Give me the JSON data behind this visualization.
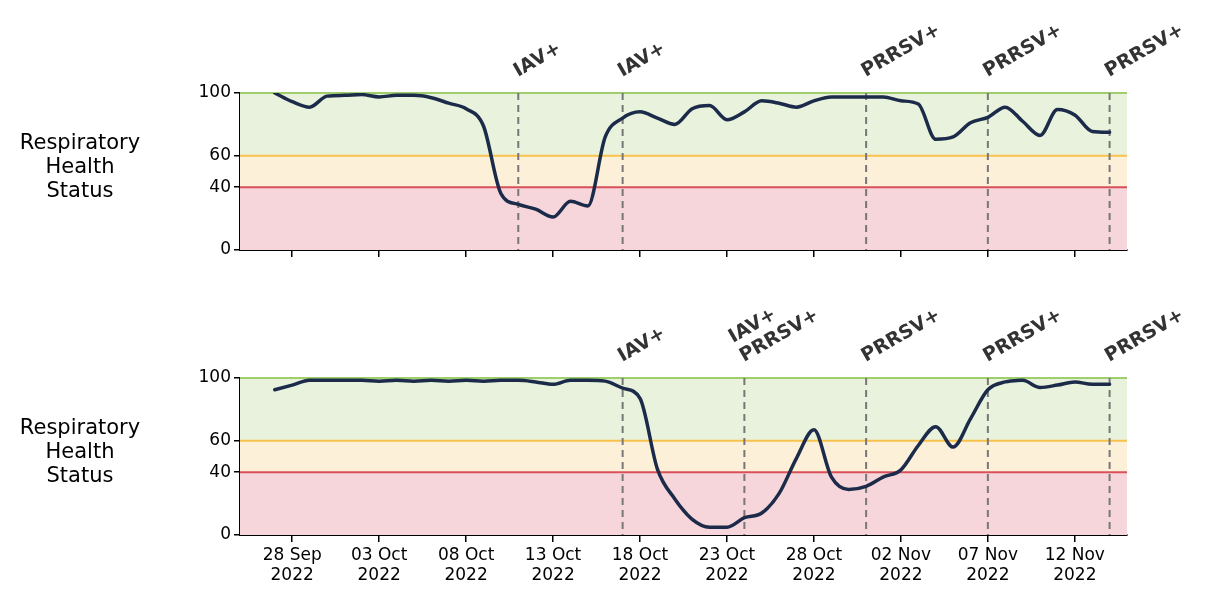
{
  "chart_data": [
    {
      "type": "line",
      "ylabel": "Respiratory\nHealth\nStatus",
      "x": [
        "2022-09-27",
        "2022-09-28",
        "2022-09-29",
        "2022-09-30",
        "2022-10-01",
        "2022-10-02",
        "2022-10-03",
        "2022-10-04",
        "2022-10-05",
        "2022-10-06",
        "2022-10-07",
        "2022-10-08",
        "2022-10-09",
        "2022-10-10",
        "2022-10-11",
        "2022-10-12",
        "2022-10-13",
        "2022-10-14",
        "2022-10-15",
        "2022-10-16",
        "2022-10-17",
        "2022-10-18",
        "2022-10-19",
        "2022-10-20",
        "2022-10-21",
        "2022-10-22",
        "2022-10-23",
        "2022-10-24",
        "2022-10-25",
        "2022-10-26",
        "2022-10-27",
        "2022-10-28",
        "2022-10-29",
        "2022-10-30",
        "2022-10-31",
        "2022-11-01",
        "2022-11-02",
        "2022-11-03",
        "2022-11-04",
        "2022-11-05",
        "2022-11-06",
        "2022-11-07",
        "2022-11-08",
        "2022-11-09",
        "2022-11-10",
        "2022-11-11",
        "2022-11-12",
        "2022-11-13",
        "2022-11-14"
      ],
      "series": [
        {
          "color": "#1c2b4a",
          "values": [
            100,
            94.5,
            91,
            98,
            98.5,
            99,
            97.5,
            98.5,
            98.5,
            97,
            93.5,
            90,
            79,
            36,
            29,
            26,
            21,
            31,
            28,
            72,
            84,
            88,
            84,
            80,
            90,
            92,
            83,
            88,
            95,
            93.5,
            91,
            95,
            97.5,
            97.5,
            97.5,
            97.5,
            95,
            93,
            70.5,
            72,
            81,
            84.5,
            91,
            82,
            73,
            89.5,
            86,
            75.5,
            75
          ]
        }
      ],
      "xlim": [
        "2022-09-25",
        "2022-11-15"
      ],
      "xticks": [
        {
          "value": "2022-09-28",
          "label": null
        },
        {
          "value": "2022-10-03",
          "label": null
        },
        {
          "value": "2022-10-08",
          "label": null
        },
        {
          "value": "2022-10-13",
          "label": null
        },
        {
          "value": "2022-10-18",
          "label": null
        },
        {
          "value": "2022-10-23",
          "label": null
        },
        {
          "value": "2022-10-28",
          "label": null
        },
        {
          "value": "2022-11-02",
          "label": null
        },
        {
          "value": "2022-11-07",
          "label": null
        },
        {
          "value": "2022-11-12",
          "label": null
        }
      ],
      "ylim": [
        0,
        100
      ],
      "yticks": [
        0,
        40,
        60,
        100
      ],
      "bands": [
        {
          "axis": "y",
          "from": 0,
          "to": 40,
          "color": "#f6d6da"
        },
        {
          "axis": "y",
          "from": 40,
          "to": 60,
          "color": "#fdf0d9"
        },
        {
          "axis": "y",
          "from": 60,
          "to": 100,
          "color": "#e9f2dc"
        }
      ],
      "ref_lines": [
        {
          "axis": "y",
          "value": 40,
          "color": "#d9505a",
          "line_style": "solid"
        },
        {
          "axis": "y",
          "value": 60,
          "color": "#f7c24c",
          "line_style": "solid"
        },
        {
          "axis": "y",
          "value": 100,
          "color": "#9fcf6c",
          "line_style": "solid"
        },
        {
          "axis": "x",
          "value": "2022-10-11",
          "label": "IAV+",
          "color": "#777777",
          "line_style": "dashed"
        },
        {
          "axis": "x",
          "value": "2022-10-17",
          "label": "IAV+",
          "color": "#777777",
          "line_style": "dashed"
        },
        {
          "axis": "x",
          "value": "2022-10-31",
          "label": "PRRSV+",
          "color": "#777777",
          "line_style": "dashed"
        },
        {
          "axis": "x",
          "value": "2022-11-07",
          "label": "PRRSV+",
          "color": "#777777",
          "line_style": "dashed"
        },
        {
          "axis": "x",
          "value": "2022-11-14",
          "label": "PRRSV+",
          "color": "#777777",
          "line_style": "dashed"
        }
      ],
      "legend": false,
      "tick_labels": "y"
    },
    {
      "type": "line",
      "ylabel": "Respiratory\nHealth\nStatus",
      "x": [
        "2022-09-27",
        "2022-09-28",
        "2022-09-29",
        "2022-09-30",
        "2022-10-01",
        "2022-10-02",
        "2022-10-03",
        "2022-10-04",
        "2022-10-05",
        "2022-10-06",
        "2022-10-07",
        "2022-10-08",
        "2022-10-09",
        "2022-10-10",
        "2022-10-11",
        "2022-10-12",
        "2022-10-13",
        "2022-10-14",
        "2022-10-15",
        "2022-10-16",
        "2022-10-17",
        "2022-10-18",
        "2022-10-19",
        "2022-10-20",
        "2022-10-21",
        "2022-10-22",
        "2022-10-23",
        "2022-10-24",
        "2022-10-25",
        "2022-10-26",
        "2022-10-27",
        "2022-10-28",
        "2022-10-29",
        "2022-10-30",
        "2022-10-31",
        "2022-11-01",
        "2022-11-02",
        "2022-11-03",
        "2022-11-04",
        "2022-11-05",
        "2022-11-06",
        "2022-11-07",
        "2022-11-08",
        "2022-11-09",
        "2022-11-10",
        "2022-11-11",
        "2022-11-12",
        "2022-11-13",
        "2022-11-14"
      ],
      "series": [
        {
          "color": "#1c2b4a",
          "values": [
            92.5,
            95.5,
            98.5,
            98.5,
            98.5,
            98.5,
            98,
            98.5,
            98,
            98.5,
            98,
            98.5,
            98,
            98.5,
            98.5,
            97.5,
            96,
            98.5,
            98.5,
            98,
            93.5,
            87,
            42,
            23,
            10,
            5,
            5,
            11,
            14,
            26.5,
            49,
            67,
            37,
            29,
            31,
            37,
            41.5,
            57,
            69,
            56,
            74,
            92.5,
            97.5,
            98.5,
            94,
            95.5,
            97.5,
            96,
            96
          ]
        }
      ],
      "xlim": [
        "2022-09-25",
        "2022-11-15"
      ],
      "xticks": [
        {
          "value": "2022-09-28",
          "label": "28 Sep\n2022"
        },
        {
          "value": "2022-10-03",
          "label": "03 Oct\n2022"
        },
        {
          "value": "2022-10-08",
          "label": "08 Oct\n2022"
        },
        {
          "value": "2022-10-13",
          "label": "13 Oct\n2022"
        },
        {
          "value": "2022-10-18",
          "label": "18 Oct\n2022"
        },
        {
          "value": "2022-10-23",
          "label": "23 Oct\n2022"
        },
        {
          "value": "2022-10-28",
          "label": "28 Oct\n2022"
        },
        {
          "value": "2022-11-02",
          "label": "02 Nov\n2022"
        },
        {
          "value": "2022-11-07",
          "label": "07 Nov\n2022"
        },
        {
          "value": "2022-11-12",
          "label": "12 Nov\n2022"
        }
      ],
      "ylim": [
        0,
        100
      ],
      "yticks": [
        0,
        40,
        60,
        100
      ],
      "bands": [
        {
          "axis": "y",
          "from": 0,
          "to": 40,
          "color": "#f6d6da"
        },
        {
          "axis": "y",
          "from": 40,
          "to": 60,
          "color": "#fdf0d9"
        },
        {
          "axis": "y",
          "from": 60,
          "to": 100,
          "color": "#e9f2dc"
        }
      ],
      "ref_lines": [
        {
          "axis": "y",
          "value": 40,
          "color": "#d9505a",
          "line_style": "solid"
        },
        {
          "axis": "y",
          "value": 60,
          "color": "#f7c24c",
          "line_style": "solid"
        },
        {
          "axis": "y",
          "value": 100,
          "color": "#9fcf6c",
          "line_style": "solid"
        },
        {
          "axis": "x",
          "value": "2022-10-17",
          "label": "IAV+",
          "color": "#777777",
          "line_style": "dashed"
        },
        {
          "axis": "x",
          "value": "2022-10-24",
          "label": "IAV+\nPRRSV+",
          "color": "#777777",
          "line_style": "dashed"
        },
        {
          "axis": "x",
          "value": "2022-10-31",
          "label": "PRRSV+",
          "color": "#777777",
          "line_style": "dashed"
        },
        {
          "axis": "x",
          "value": "2022-11-07",
          "label": "PRRSV+",
          "color": "#777777",
          "line_style": "dashed"
        },
        {
          "axis": "x",
          "value": "2022-11-14",
          "label": "PRRSV+",
          "color": "#777777",
          "line_style": "dashed"
        }
      ],
      "legend": false
    }
  ]
}
